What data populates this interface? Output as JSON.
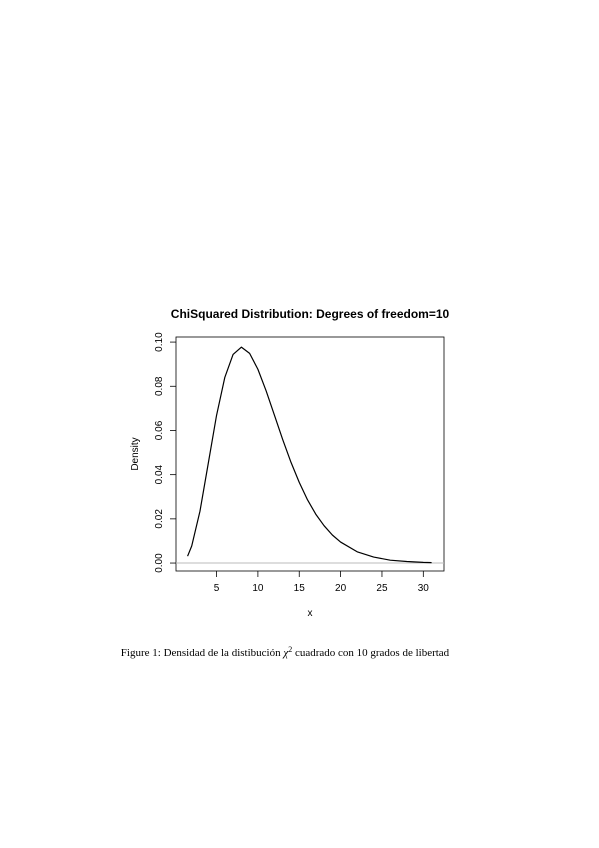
{
  "chart_data": {
    "type": "line",
    "title": "ChiSquared Distribution:  Degrees of freedom=10",
    "x_label": "x",
    "y_label": "Density",
    "x": [
      1.5,
      2,
      3,
      4,
      5,
      6,
      7,
      8,
      9,
      10,
      11,
      12,
      13,
      14,
      15,
      16,
      17,
      18,
      19,
      20,
      22,
      24,
      26,
      28,
      30,
      31
    ],
    "series": [
      {
        "color": "#000000",
        "values": [
          0.0031,
          0.0077,
          0.0235,
          0.0451,
          0.0668,
          0.084,
          0.0944,
          0.0977,
          0.0949,
          0.0877,
          0.0779,
          0.0669,
          0.0559,
          0.0456,
          0.0365,
          0.0286,
          0.0221,
          0.0169,
          0.0127,
          0.0095,
          0.0051,
          0.0027,
          0.0013,
          0.0007,
          0.0003,
          0.0002
        ]
      }
    ],
    "xlim": [
      0.1,
      32.5
    ],
    "ylim": [
      -0.0036,
      0.1023
    ],
    "xticks": [
      5,
      10,
      15,
      20,
      25,
      30
    ],
    "yticks": [
      {
        "value": 0,
        "label": "0.00"
      },
      {
        "value": 0.02,
        "label": "0.02"
      },
      {
        "value": 0.04,
        "label": "0.04"
      },
      {
        "value": 0.06,
        "label": "0.06"
      },
      {
        "value": 0.08,
        "label": "0.08"
      },
      {
        "value": 0.1,
        "label": "0.10"
      }
    ],
    "grid": false,
    "zero_line_color": "#bbbbbb"
  },
  "caption": {
    "label": "Figure 1:",
    "before": "Densidad de la distibución",
    "symbol": "χ",
    "superscript": "2",
    "after": "cuadrado con 10 grados de libertad"
  }
}
